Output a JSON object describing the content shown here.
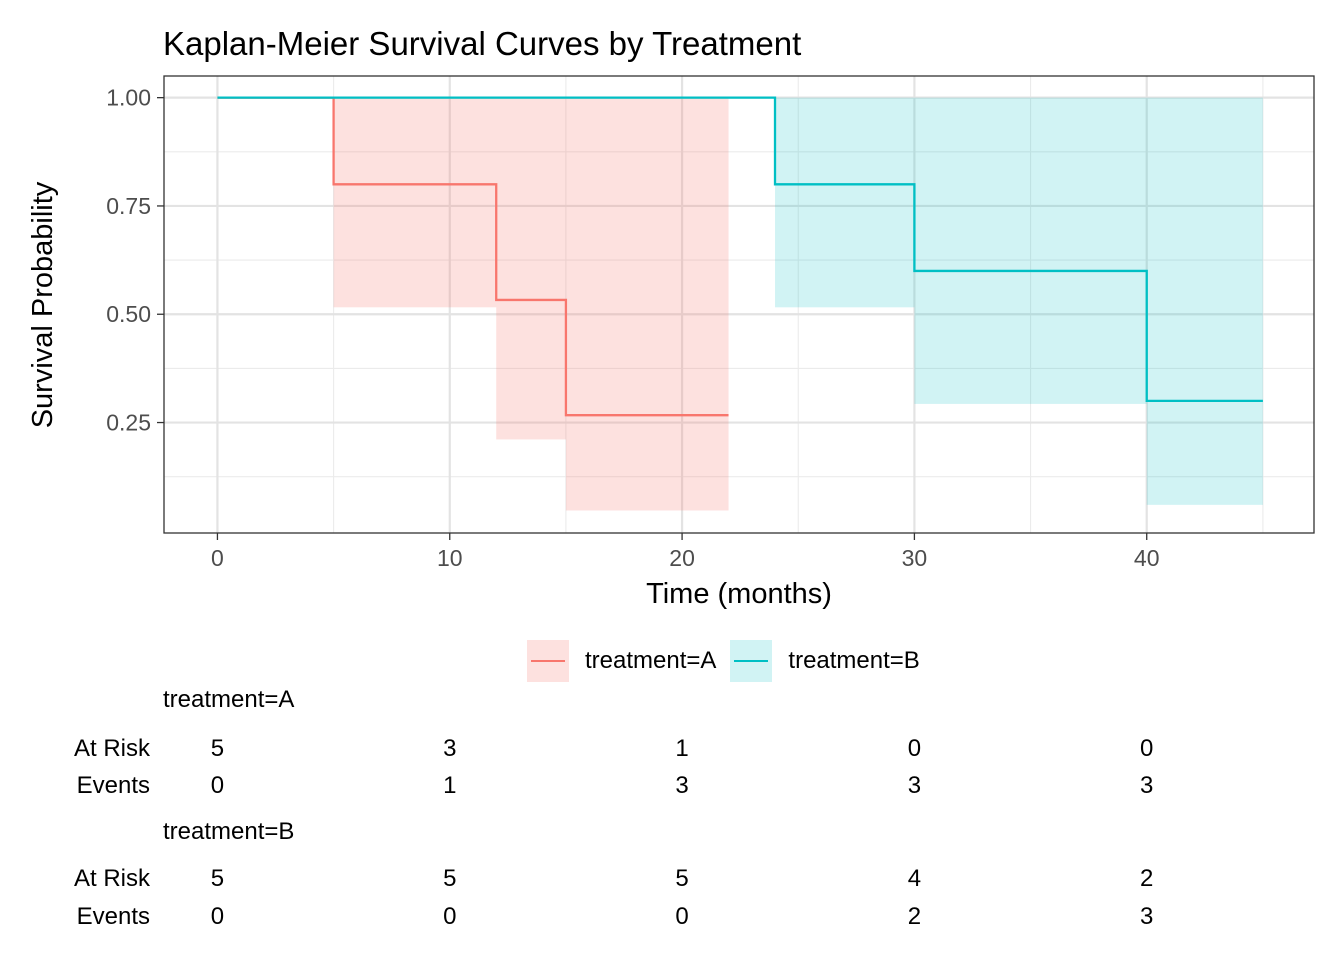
{
  "chart_data": {
    "type": "line",
    "step": true,
    "title": "Kaplan-Meier Survival Curves by Treatment",
    "xlabel": "Time (months)",
    "ylabel": "Survival Probability",
    "xlim": [
      -2.3,
      47.2
    ],
    "ylim": [
      -0.005,
      1.05
    ],
    "x_ticks": [
      0,
      10,
      20,
      30,
      40
    ],
    "x_tick_labels": [
      "0",
      "10",
      "20",
      "30",
      "40"
    ],
    "y_ticks": [
      0.25,
      0.5,
      0.75,
      1.0
    ],
    "y_tick_labels": [
      "0.25",
      "0.50",
      "0.75",
      "1.00"
    ],
    "grid": true,
    "legend_position": "bottom",
    "series": [
      {
        "name": "treatment=A",
        "color": "#F8766D",
        "fill_color": "#F8766D",
        "steps": [
          {
            "x0": 0,
            "x1": 5,
            "y": 1.0,
            "lower": 1.0,
            "upper": 1.0
          },
          {
            "x0": 5,
            "x1": 12,
            "y": 0.8,
            "lower": 0.516,
            "upper": 1.0
          },
          {
            "x0": 12,
            "x1": 15,
            "y": 0.533,
            "lower": 0.211,
            "upper": 1.0
          },
          {
            "x0": 15,
            "x1": 22,
            "y": 0.267,
            "lower": 0.047,
            "upper": 1.0
          }
        ]
      },
      {
        "name": "treatment=B",
        "color": "#00BFC4",
        "fill_color": "#00BFC4",
        "steps": [
          {
            "x0": 0,
            "x1": 24,
            "y": 1.0,
            "lower": 1.0,
            "upper": 1.0
          },
          {
            "x0": 24,
            "x1": 30,
            "y": 0.8,
            "lower": 0.516,
            "upper": 1.0
          },
          {
            "x0": 30,
            "x1": 40,
            "y": 0.6,
            "lower": 0.293,
            "upper": 1.0
          },
          {
            "x0": 40,
            "x1": 45,
            "y": 0.3,
            "lower": 0.06,
            "upper": 1.0
          }
        ]
      }
    ]
  },
  "legend": [
    {
      "label": "treatment=A",
      "color": "#F8766D"
    },
    {
      "label": "treatment=B",
      "color": "#00BFC4"
    }
  ],
  "risk_table": {
    "times": [
      0,
      10,
      20,
      30,
      40
    ],
    "row_labels": [
      "At Risk",
      "Events"
    ],
    "groups": [
      {
        "name": "treatment=A",
        "at_risk": [
          "5",
          "3",
          "1",
          "0",
          "0"
        ],
        "events": [
          "0",
          "1",
          "3",
          "3",
          "3"
        ]
      },
      {
        "name": "treatment=B",
        "at_risk": [
          "5",
          "5",
          "5",
          "4",
          "2"
        ],
        "events": [
          "0",
          "0",
          "0",
          "2",
          "3"
        ]
      }
    ]
  }
}
